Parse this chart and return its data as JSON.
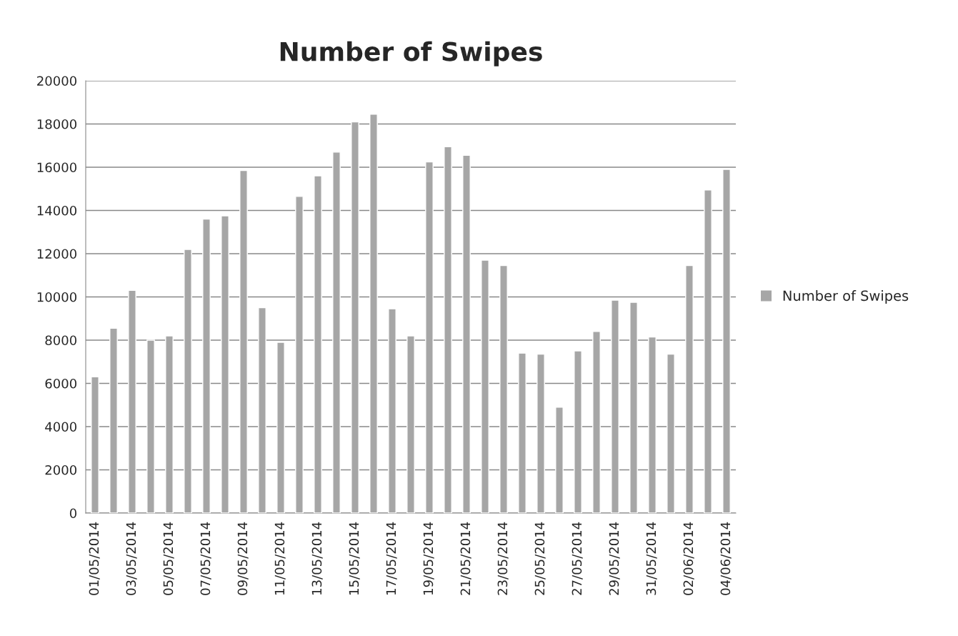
{
  "chart_data": {
    "type": "bar",
    "title": "Number of Swipes",
    "categories": [
      "01/05/2014",
      null,
      "03/05/2014",
      null,
      "05/05/2014",
      null,
      "07/05/2014",
      null,
      "09/05/2014",
      null,
      "11/05/2014",
      null,
      "13/05/2014",
      null,
      "15/05/2014",
      null,
      "17/05/2014",
      null,
      "19/05/2014",
      null,
      "21/05/2014",
      null,
      "23/05/2014",
      null,
      "25/05/2014",
      null,
      "27/05/2014",
      null,
      "29/05/2014",
      null,
      "31/05/2014",
      null,
      "02/06/2014",
      null,
      "04/06/2014"
    ],
    "series": [
      {
        "name": "Number of Swipes",
        "color": "#a6a6a6",
        "values": [
          6300,
          8550,
          10300,
          8000,
          8200,
          12200,
          13600,
          13750,
          15850,
          9500,
          7900,
          14650,
          15600,
          16700,
          18100,
          18450,
          9450,
          8200,
          16250,
          16950,
          16550,
          11700,
          11450,
          7400,
          7350,
          4900,
          7500,
          8400,
          9850,
          9750,
          8150,
          7350,
          11450,
          14950,
          15900
        ]
      }
    ],
    "ylim": [
      0,
      20000
    ],
    "yticks": [
      0,
      2000,
      4000,
      6000,
      8000,
      10000,
      12000,
      14000,
      16000,
      18000,
      20000
    ],
    "grid": "y",
    "legend": "right"
  }
}
